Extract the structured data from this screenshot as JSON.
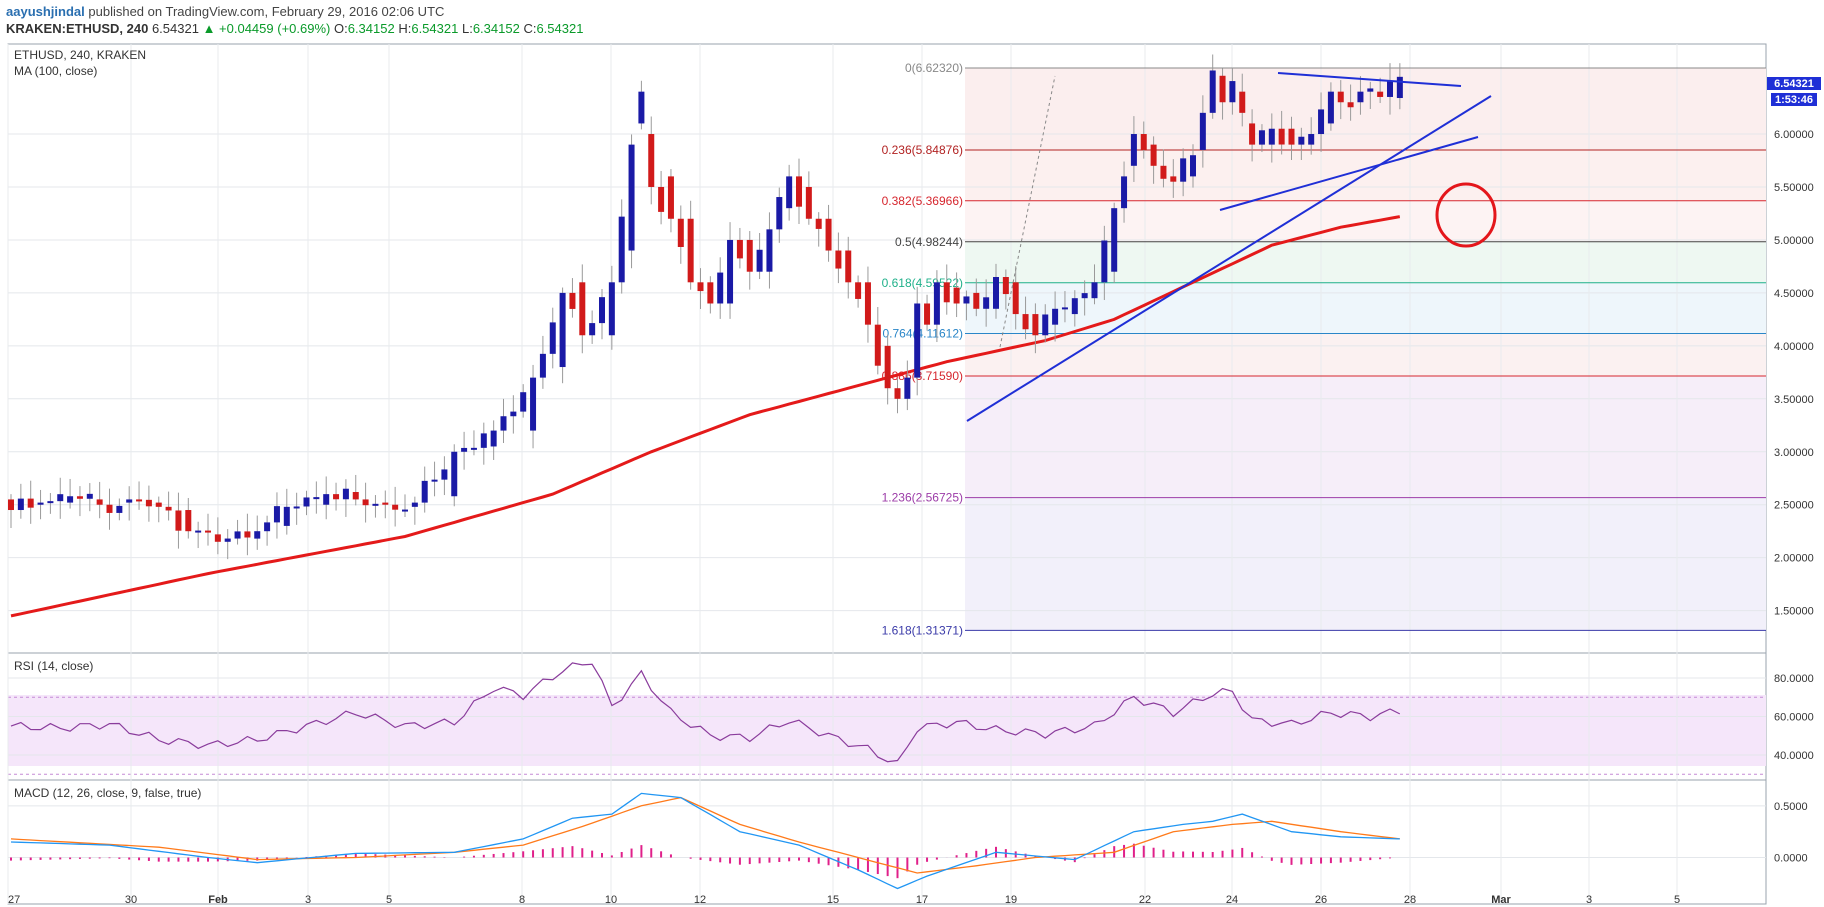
{
  "header": {
    "author": "aayushjindal",
    "published": "published on TradingView.com, February 29, 2016 02:06 UTC",
    "symbol": "KRAKEN:ETHUSD, 240",
    "last": "6.54321",
    "change": "▲ +0.04459 (+0.69%)",
    "o_label": "O:",
    "o_value": "6.34152",
    "h_label": "H:",
    "h_value": "6.54321",
    "l_label": "L:",
    "l_value": "6.34152",
    "c_label": "C:",
    "c_value": "6.54321"
  },
  "price_pane": {
    "title": "ETHUSD, 240, KRAKEN",
    "indicator": "MA (100, close)",
    "last_price_badge": "6.54321",
    "countdown_badge": "1:53:46"
  },
  "rsi_pane": {
    "title": "RSI (14, close)"
  },
  "macd_pane": {
    "title": "MACD (12, 26, close, 9, false, true)"
  },
  "colors": {
    "up_candle": "#1a1aa6",
    "down_candle": "#d11a1a",
    "ma": "#e41a1a",
    "trendline": "#1f2fd6",
    "rsi": "#8a3c9c",
    "macd": "#2196f3",
    "signal": "#ff7a1a",
    "histogram": "#e0208a"
  },
  "chart_data": [
    {
      "type": "candlestick",
      "x_ticks": [
        "27",
        "30",
        "Feb",
        "3",
        "5",
        "8",
        "10",
        "12",
        "15",
        "17",
        "19",
        "22",
        "24",
        "26",
        "28",
        "Mar",
        "3",
        "5"
      ],
      "y_ticks": [
        "6.00000",
        "5.50000",
        "5.00000",
        "4.50000",
        "4.00000",
        "3.50000",
        "3.00000",
        "2.50000",
        "2.00000",
        "1.50000"
      ],
      "ylim": [
        1.1,
        6.85
      ],
      "fibonacci_levels": [
        {
          "label": "0(6.62320)",
          "value": 6.6232,
          "color": "#888888"
        },
        {
          "label": "0.236(5.84876)",
          "value": 5.84876,
          "color": "#b22222"
        },
        {
          "label": "0.382(5.36966)",
          "value": 5.36966,
          "color": "#d6262e"
        },
        {
          "label": "0.5(4.98244)",
          "value": 4.98244,
          "color": "#444444"
        },
        {
          "label": "0.618(4.59522)",
          "value": 4.59522,
          "color": "#1fb08a"
        },
        {
          "label": "0.764(4.11612)",
          "value": 4.11612,
          "color": "#2a86c8"
        },
        {
          "label": "0.886(3.71590)",
          "value": 3.7159,
          "color": "#d6262e"
        },
        {
          "label": "1.236(2.56725)",
          "value": 2.56725,
          "color": "#9c3ca8"
        },
        {
          "label": "1.618(1.31371)",
          "value": 1.31371,
          "color": "#3a3aa8"
        }
      ],
      "ohlc_anchors": [
        [
          0,
          2.55,
          2.45
        ],
        [
          3,
          2.5,
          2.52
        ],
        [
          6,
          2.52,
          2.58
        ],
        [
          9,
          2.55,
          2.5
        ],
        [
          12,
          2.52,
          2.55
        ],
        [
          15,
          2.52,
          2.48
        ],
        [
          18,
          2.45,
          2.25
        ],
        [
          21,
          2.22,
          2.15
        ],
        [
          25,
          2.18,
          2.25
        ],
        [
          28,
          2.3,
          2.48
        ],
        [
          32,
          2.5,
          2.6
        ],
        [
          35,
          2.62,
          2.55
        ],
        [
          38,
          2.52,
          2.5
        ],
        [
          41,
          2.48,
          2.52
        ],
        [
          45,
          2.58,
          3.0
        ],
        [
          49,
          3.05,
          3.2
        ],
        [
          53,
          3.2,
          3.7
        ],
        [
          56,
          3.8,
          4.5
        ],
        [
          58,
          4.6,
          4.1
        ],
        [
          61,
          4.1,
          4.6
        ],
        [
          63,
          4.9,
          5.9
        ],
        [
          64,
          6.1,
          6.4
        ],
        [
          65,
          6.0,
          5.5
        ],
        [
          67,
          5.6,
          5.2
        ],
        [
          69,
          5.2,
          4.6
        ],
        [
          71,
          4.6,
          4.4
        ],
        [
          73,
          4.4,
          5.0
        ],
        [
          75,
          5.0,
          4.7
        ],
        [
          77,
          4.7,
          5.1
        ],
        [
          79,
          5.3,
          5.6
        ],
        [
          81,
          5.5,
          5.2
        ],
        [
          83,
          5.2,
          4.9
        ],
        [
          85,
          4.9,
          4.6
        ],
        [
          87,
          4.6,
          4.2
        ],
        [
          89,
          4.0,
          3.6
        ],
        [
          90,
          3.6,
          3.5
        ],
        [
          91,
          3.5,
          3.7
        ],
        [
          92,
          3.7,
          4.4
        ],
        [
          93,
          4.4,
          4.2
        ],
        [
          94,
          4.2,
          4.6
        ],
        [
          96,
          4.55,
          4.4
        ],
        [
          98,
          4.5,
          4.35
        ],
        [
          100,
          4.35,
          4.65
        ],
        [
          102,
          4.6,
          4.3
        ],
        [
          104,
          4.3,
          4.1
        ],
        [
          106,
          4.2,
          4.35
        ],
        [
          108,
          4.3,
          4.45
        ],
        [
          110,
          4.45,
          4.6
        ],
        [
          112,
          4.7,
          5.3
        ],
        [
          113,
          5.3,
          5.6
        ],
        [
          114,
          5.7,
          6.0
        ],
        [
          116,
          5.9,
          5.7
        ],
        [
          118,
          5.6,
          5.55
        ],
        [
          120,
          5.6,
          5.8
        ],
        [
          121,
          5.85,
          6.2
        ],
        [
          122,
          6.2,
          6.6
        ],
        [
          123,
          6.55,
          6.3
        ],
        [
          124,
          6.3,
          6.5
        ],
        [
          125,
          6.4,
          6.2
        ],
        [
          126,
          6.1,
          5.9
        ],
        [
          128,
          5.9,
          6.05
        ],
        [
          130,
          6.05,
          5.9
        ],
        [
          132,
          5.9,
          6.0
        ],
        [
          134,
          6.1,
          6.4
        ],
        [
          135,
          6.4,
          6.3
        ],
        [
          137,
          6.3,
          6.4
        ],
        [
          139,
          6.4,
          6.35
        ],
        [
          140,
          6.35,
          6.5
        ],
        [
          141,
          6.34,
          6.54
        ]
      ],
      "ma100_anchors": [
        [
          0,
          1.45
        ],
        [
          20,
          1.85
        ],
        [
          40,
          2.2
        ],
        [
          55,
          2.6
        ],
        [
          65,
          3.0
        ],
        [
          75,
          3.35
        ],
        [
          85,
          3.6
        ],
        [
          95,
          3.85
        ],
        [
          105,
          4.05
        ],
        [
          112,
          4.25
        ],
        [
          120,
          4.6
        ],
        [
          128,
          4.95
        ],
        [
          135,
          5.12
        ],
        [
          141,
          5.22
        ]
      ]
    },
    {
      "type": "line",
      "name": "RSI (14, close)",
      "y_ticks": [
        "80.0000",
        "60.0000",
        "40.0000"
      ],
      "ylim": [
        27,
        93
      ],
      "anchors": [
        [
          0,
          55
        ],
        [
          5,
          54
        ],
        [
          10,
          56
        ],
        [
          15,
          48
        ],
        [
          20,
          45
        ],
        [
          25,
          48
        ],
        [
          30,
          55
        ],
        [
          35,
          62
        ],
        [
          40,
          55
        ],
        [
          45,
          57
        ],
        [
          49,
          75
        ],
        [
          52,
          71
        ],
        [
          56,
          84
        ],
        [
          59,
          89
        ],
        [
          61,
          65
        ],
        [
          64,
          82
        ],
        [
          67,
          62
        ],
        [
          71,
          50
        ],
        [
          75,
          49
        ],
        [
          79,
          58
        ],
        [
          83,
          50
        ],
        [
          87,
          43
        ],
        [
          90,
          35
        ],
        [
          92,
          54
        ],
        [
          96,
          57
        ],
        [
          100,
          53
        ],
        [
          105,
          51
        ],
        [
          110,
          55
        ],
        [
          114,
          70
        ],
        [
          118,
          62
        ],
        [
          122,
          72
        ],
        [
          124,
          73
        ],
        [
          126,
          58
        ],
        [
          130,
          56
        ],
        [
          134,
          62
        ],
        [
          138,
          60
        ],
        [
          141,
          63
        ]
      ]
    },
    {
      "type": "line",
      "name": "MACD (12, 26, close, 9, false, true)",
      "y_ticks": [
        "0.5000",
        "0.0000"
      ],
      "ylim": [
        -0.45,
        0.75
      ],
      "macd_anchors": [
        [
          0,
          0.15
        ],
        [
          10,
          0.12
        ],
        [
          20,
          0.0
        ],
        [
          25,
          -0.05
        ],
        [
          35,
          0.04
        ],
        [
          45,
          0.05
        ],
        [
          52,
          0.18
        ],
        [
          57,
          0.38
        ],
        [
          61,
          0.42
        ],
        [
          64,
          0.62
        ],
        [
          68,
          0.58
        ],
        [
          74,
          0.25
        ],
        [
          80,
          0.12
        ],
        [
          86,
          -0.12
        ],
        [
          90,
          -0.3
        ],
        [
          93,
          -0.18
        ],
        [
          100,
          0.05
        ],
        [
          108,
          -0.02
        ],
        [
          114,
          0.25
        ],
        [
          119,
          0.32
        ],
        [
          122,
          0.35
        ],
        [
          125,
          0.42
        ],
        [
          130,
          0.25
        ],
        [
          135,
          0.2
        ],
        [
          141,
          0.18
        ]
      ],
      "signal_anchors": [
        [
          0,
          0.18
        ],
        [
          15,
          0.1
        ],
        [
          25,
          -0.02
        ],
        [
          35,
          0.0
        ],
        [
          45,
          0.05
        ],
        [
          52,
          0.12
        ],
        [
          58,
          0.3
        ],
        [
          64,
          0.5
        ],
        [
          68,
          0.58
        ],
        [
          74,
          0.32
        ],
        [
          80,
          0.15
        ],
        [
          86,
          0.0
        ],
        [
          92,
          -0.15
        ],
        [
          98,
          -0.08
        ],
        [
          104,
          0.0
        ],
        [
          112,
          0.05
        ],
        [
          118,
          0.25
        ],
        [
          124,
          0.32
        ],
        [
          128,
          0.35
        ],
        [
          135,
          0.25
        ],
        [
          141,
          0.18
        ]
      ]
    }
  ]
}
